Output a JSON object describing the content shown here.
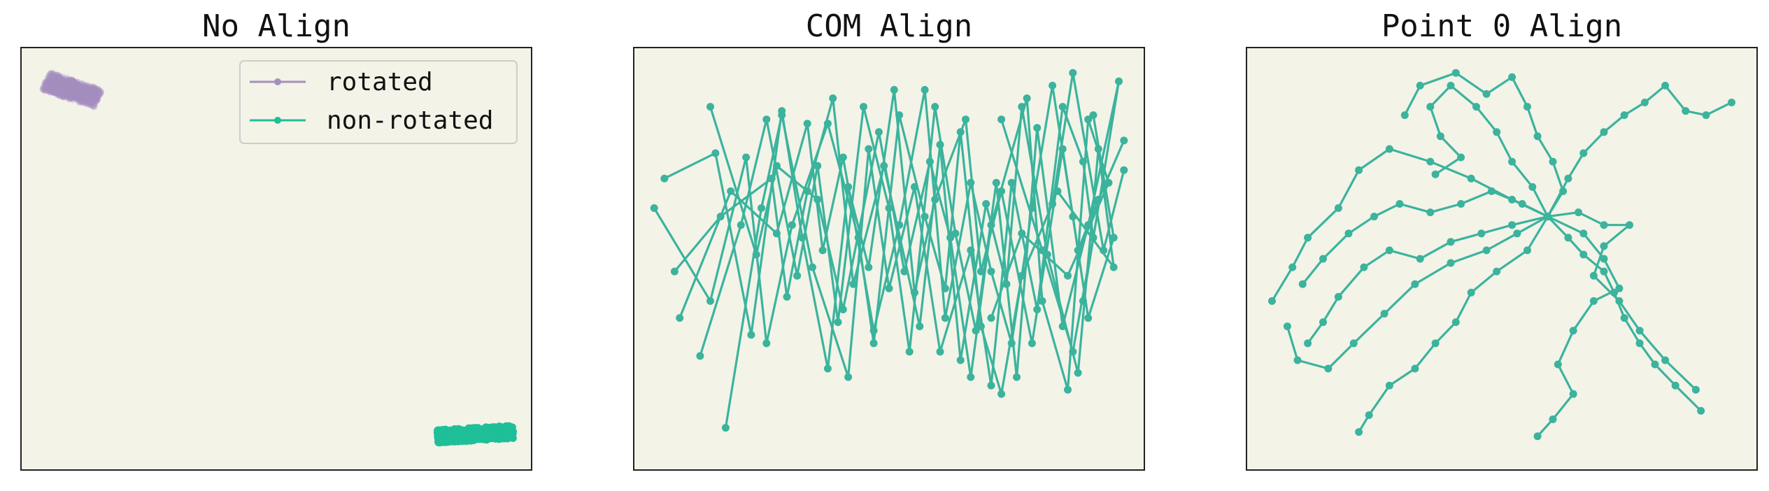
{
  "chart_data": [
    {
      "type": "line",
      "title": "No Align",
      "xlabel": "",
      "ylabel": "",
      "xlim": [
        0,
        100
      ],
      "ylim": [
        0,
        100
      ],
      "grid": false,
      "background": "#f3f3e8",
      "legend": {
        "placement": "top-right",
        "entries": [
          "rotated",
          "non-rotated"
        ]
      },
      "series": [
        {
          "name": "rotated",
          "color": "#a58fc0",
          "clusters": [
            {
              "center": [
                10,
                90
              ],
              "rx": 5.5,
              "ry": 2.2,
              "tilt": -22
            }
          ]
        },
        {
          "name": "non-rotated",
          "color": "#1fbf98",
          "clusters": [
            {
              "center": [
                89,
                8.5
              ],
              "rx": 7.5,
              "ry": 1.6,
              "tilt": 4
            }
          ]
        }
      ]
    },
    {
      "type": "line",
      "title": "COM Align",
      "xlabel": "",
      "ylabel": "",
      "xlim": [
        0,
        100
      ],
      "ylim": [
        0,
        100
      ],
      "grid": false,
      "background": "#f3f3e8",
      "series_color": "#3bb39d",
      "paths": [
        [
          [
            18,
            10
          ],
          [
            25,
            62
          ],
          [
            29,
            84
          ],
          [
            35,
            48
          ],
          [
            42,
            22
          ],
          [
            46,
            76
          ],
          [
            50,
            43
          ],
          [
            55,
            67
          ],
          [
            60,
            28
          ],
          [
            66,
            52
          ],
          [
            70,
            20
          ],
          [
            74,
            68
          ],
          [
            79,
            38
          ],
          [
            84,
            86
          ],
          [
            88,
            73
          ],
          [
            90,
            55
          ],
          [
            86,
            28
          ],
          [
            80,
            52
          ],
          [
            72,
            83
          ]
        ],
        [
          [
            4,
            62
          ],
          [
            15,
            40
          ],
          [
            22,
            74
          ],
          [
            26,
            30
          ],
          [
            31,
            58
          ],
          [
            38,
            82
          ],
          [
            44,
            55
          ],
          [
            47,
            30
          ],
          [
            52,
            84
          ],
          [
            57,
            60
          ],
          [
            61,
            43
          ],
          [
            64,
            80
          ],
          [
            68,
            34
          ],
          [
            72,
            18
          ],
          [
            76,
            46
          ],
          [
            82,
            63
          ],
          [
            86,
            94
          ],
          [
            92,
            52
          ],
          [
            96,
            71
          ]
        ],
        [
          [
            15,
            86
          ],
          [
            24,
            51
          ],
          [
            28,
            72
          ],
          [
            36,
            64
          ],
          [
            41,
            38
          ],
          [
            48,
            80
          ],
          [
            53,
            47
          ],
          [
            58,
            73
          ],
          [
            62,
            55
          ],
          [
            66,
            22
          ],
          [
            70,
            58
          ],
          [
            77,
            88
          ],
          [
            80,
            40
          ],
          [
            85,
            19
          ],
          [
            89,
            83
          ],
          [
            93,
            68
          ],
          [
            85,
            46
          ],
          [
            76,
            56
          ],
          [
            70,
            36
          ]
        ],
        [
          [
            13,
            27
          ],
          [
            21,
            58
          ],
          [
            26,
            83
          ],
          [
            32,
            46
          ],
          [
            36,
            72
          ],
          [
            40,
            35
          ],
          [
            45,
            86
          ],
          [
            50,
            62
          ],
          [
            54,
            28
          ],
          [
            59,
            86
          ],
          [
            63,
            56
          ],
          [
            67,
            33
          ],
          [
            71,
            68
          ],
          [
            75,
            22
          ],
          [
            79,
            81
          ],
          [
            84,
            34
          ],
          [
            89,
            58
          ],
          [
            95,
            92
          ],
          [
            88,
            40
          ]
        ],
        [
          [
            8,
            47
          ],
          [
            17,
            60
          ],
          [
            27,
            69
          ],
          [
            30,
            41
          ],
          [
            34,
            66
          ],
          [
            39,
            88
          ],
          [
            43,
            44
          ],
          [
            49,
            72
          ],
          [
            56,
            34
          ],
          [
            60,
            77
          ],
          [
            64,
            26
          ],
          [
            69,
            63
          ],
          [
            73,
            44
          ],
          [
            76,
            86
          ],
          [
            81,
            51
          ],
          [
            87,
            23
          ],
          [
            91,
            76
          ],
          [
            94,
            48
          ],
          [
            83,
            66
          ]
        ],
        [
          [
            6,
            69
          ],
          [
            16,
            75
          ],
          [
            23,
            32
          ],
          [
            29,
            85
          ],
          [
            33,
            55
          ],
          [
            38,
            24
          ],
          [
            42,
            67
          ],
          [
            46,
            48
          ],
          [
            51,
            90
          ],
          [
            55,
            42
          ],
          [
            59,
            64
          ],
          [
            65,
            83
          ],
          [
            68,
            47
          ],
          [
            72,
            66
          ],
          [
            78,
            30
          ],
          [
            84,
            76
          ],
          [
            87,
            52
          ],
          [
            91,
            64
          ],
          [
            96,
            78
          ]
        ],
        [
          [
            9,
            36
          ],
          [
            19,
            66
          ],
          [
            28,
            56
          ],
          [
            34,
            82
          ],
          [
            37,
            52
          ],
          [
            41,
            74
          ],
          [
            47,
            33
          ],
          [
            52,
            58
          ],
          [
            57,
            90
          ],
          [
            61,
            36
          ],
          [
            66,
            68
          ],
          [
            70,
            47
          ],
          [
            74,
            30
          ],
          [
            78,
            62
          ],
          [
            82,
            91
          ],
          [
            86,
            60
          ],
          [
            89,
            36
          ],
          [
            94,
            55
          ],
          [
            90,
            84
          ]
        ]
      ]
    },
    {
      "type": "line",
      "title": "Point 0 Align",
      "xlabel": "",
      "ylabel": "",
      "xlim": [
        0,
        100
      ],
      "ylim": [
        0,
        100
      ],
      "grid": false,
      "background": "#f3f3e8",
      "series_color": "#3bb39d",
      "paths": [
        [
          [
            59,
            60
          ],
          [
            52,
            64
          ],
          [
            44,
            69
          ],
          [
            36,
            73
          ],
          [
            28,
            76
          ],
          [
            22,
            71
          ],
          [
            18,
            62
          ],
          [
            12,
            55
          ],
          [
            9,
            48
          ],
          [
            5,
            40
          ]
        ],
        [
          [
            59,
            60
          ],
          [
            53,
            56
          ],
          [
            47,
            52
          ],
          [
            40,
            49
          ],
          [
            33,
            44
          ],
          [
            27,
            37
          ],
          [
            21,
            30
          ],
          [
            16,
            24
          ],
          [
            10,
            26
          ],
          [
            8,
            34
          ]
        ],
        [
          [
            59,
            60
          ],
          [
            56,
            67
          ],
          [
            52,
            73
          ],
          [
            49,
            80
          ],
          [
            45,
            86
          ],
          [
            40,
            91
          ],
          [
            36,
            86
          ],
          [
            38,
            79
          ],
          [
            42,
            74
          ],
          [
            37,
            70
          ]
        ],
        [
          [
            59,
            60
          ],
          [
            62,
            66
          ],
          [
            60,
            73
          ],
          [
            57,
            79
          ],
          [
            55,
            86
          ],
          [
            52,
            93
          ],
          [
            47,
            89
          ],
          [
            41,
            94
          ],
          [
            34,
            91
          ],
          [
            31,
            84
          ]
        ],
        [
          [
            59,
            60
          ],
          [
            63,
            69
          ],
          [
            66,
            75
          ],
          [
            70,
            80
          ],
          [
            74,
            84
          ],
          [
            78,
            87
          ],
          [
            82,
            91
          ],
          [
            86,
            85
          ],
          [
            90,
            84
          ],
          [
            95,
            87
          ]
        ],
        [
          [
            59,
            60
          ],
          [
            66,
            56
          ],
          [
            70,
            50
          ],
          [
            73,
            43
          ],
          [
            68,
            40
          ],
          [
            64,
            33
          ],
          [
            61,
            25
          ],
          [
            64,
            18
          ],
          [
            60,
            12
          ],
          [
            57,
            8
          ]
        ],
        [
          [
            59,
            60
          ],
          [
            65,
            61
          ],
          [
            70,
            58
          ],
          [
            75,
            58
          ],
          [
            70,
            53
          ],
          [
            68,
            46
          ],
          [
            73,
            40
          ],
          [
            77,
            33
          ],
          [
            82,
            26
          ],
          [
            88,
            19
          ]
        ],
        [
          [
            59,
            60
          ],
          [
            55,
            52
          ],
          [
            49,
            47
          ],
          [
            44,
            42
          ],
          [
            41,
            35
          ],
          [
            37,
            30
          ],
          [
            33,
            24
          ],
          [
            28,
            20
          ],
          [
            24,
            13
          ],
          [
            22,
            9
          ]
        ],
        [
          [
            59,
            60
          ],
          [
            52,
            58
          ],
          [
            46,
            56
          ],
          [
            40,
            54
          ],
          [
            34,
            50
          ],
          [
            28,
            52
          ],
          [
            23,
            48
          ],
          [
            18,
            41
          ],
          [
            15,
            35
          ],
          [
            12,
            30
          ]
        ],
        [
          [
            59,
            60
          ],
          [
            63,
            55
          ],
          [
            66,
            51
          ],
          [
            70,
            47
          ],
          [
            72,
            42
          ],
          [
            74,
            36
          ],
          [
            77,
            30
          ],
          [
            80,
            25
          ],
          [
            84,
            20
          ],
          [
            89,
            14
          ]
        ],
        [
          [
            59,
            60
          ],
          [
            54,
            63
          ],
          [
            48,
            66
          ],
          [
            42,
            63
          ],
          [
            36,
            61
          ],
          [
            30,
            63
          ],
          [
            25,
            60
          ],
          [
            20,
            56
          ],
          [
            15,
            50
          ],
          [
            11,
            44
          ]
        ]
      ]
    }
  ]
}
